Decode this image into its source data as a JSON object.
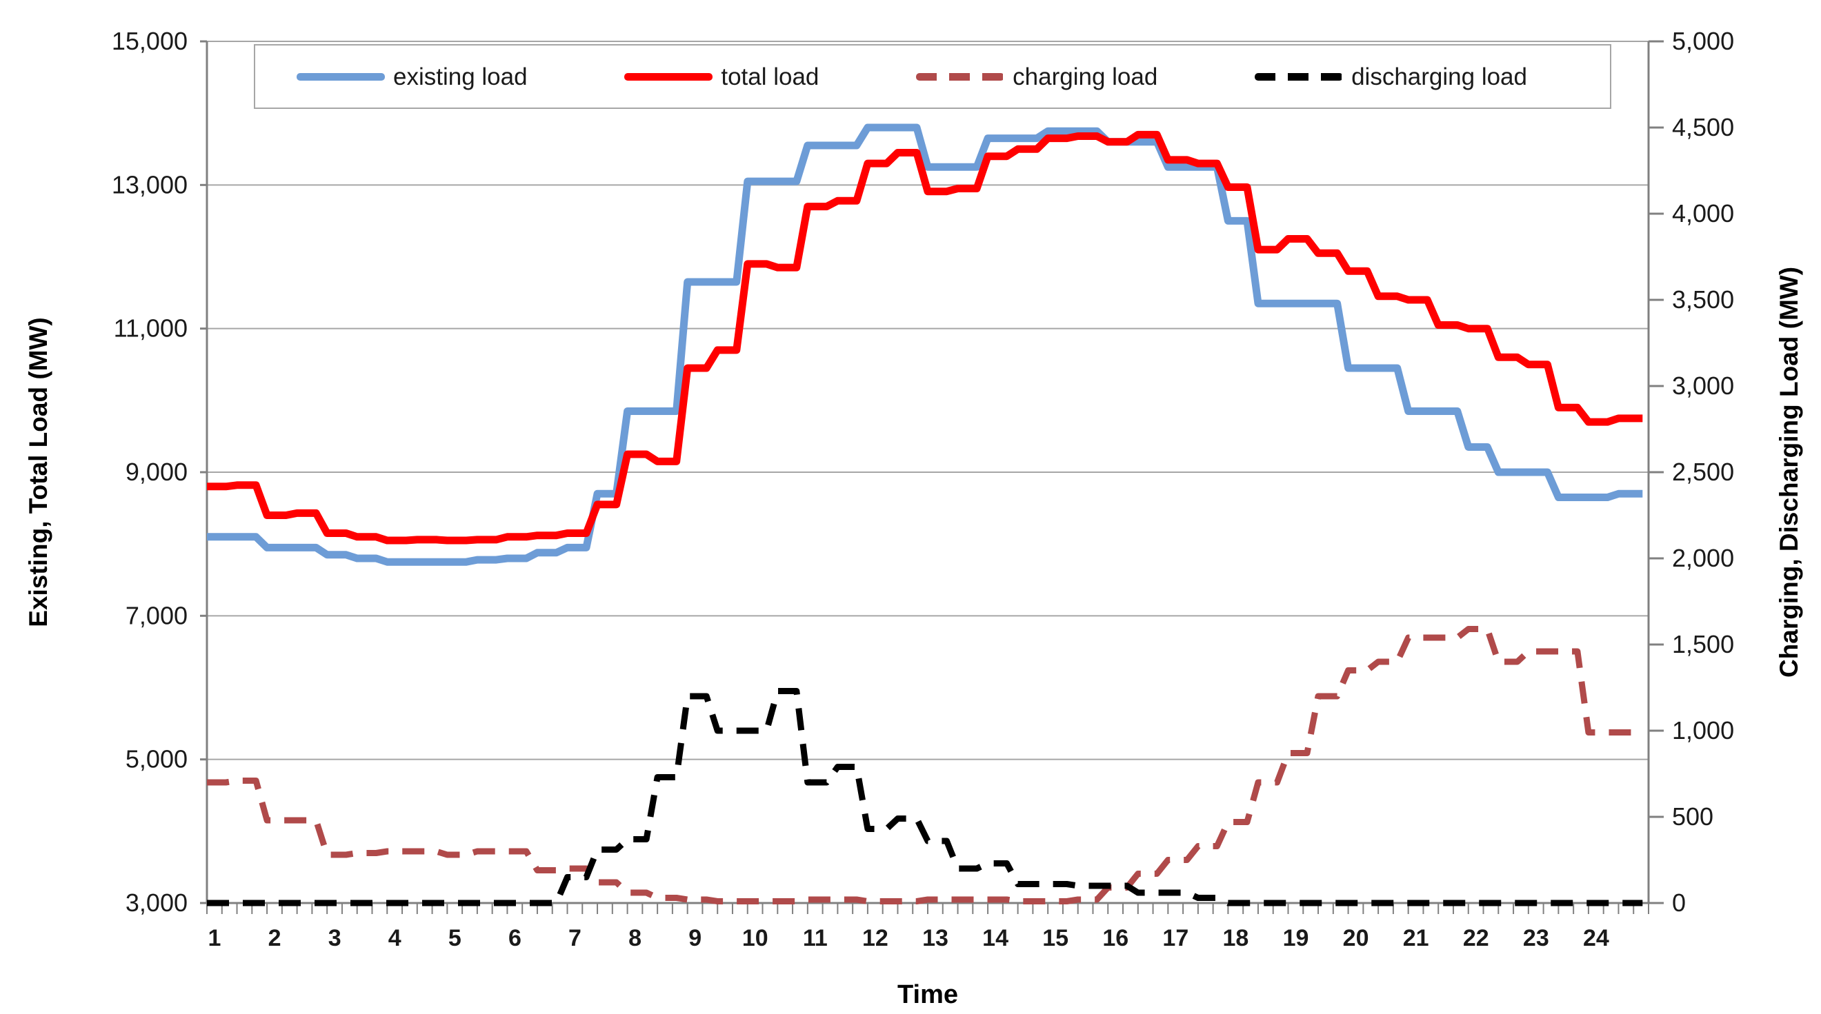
{
  "chart_data": {
    "type": "line",
    "title": "",
    "x_axis": {
      "label": "Time",
      "tick_labels": [
        "1",
        "2",
        "3",
        "4",
        "5",
        "6",
        "7",
        "8",
        "9",
        "10",
        "11",
        "12",
        "13",
        "14",
        "15",
        "16",
        "17",
        "18",
        "19",
        "20",
        "21",
        "22",
        "23",
        "24"
      ],
      "tick_values": [
        1,
        2,
        3,
        4,
        5,
        6,
        7,
        8,
        9,
        10,
        11,
        12,
        13,
        14,
        15,
        16,
        17,
        18,
        19,
        20,
        21,
        22,
        23,
        24
      ],
      "range": [
        1,
        25
      ],
      "minor_tick_step": 0.25
    },
    "y_left": {
      "label": "Existing, Total Load (MW)",
      "tick_labels": [
        "3,000",
        "5,000",
        "7,000",
        "9,000",
        "11,000",
        "13,000",
        "15,000"
      ],
      "tick_values": [
        3000,
        5000,
        7000,
        9000,
        11000,
        13000,
        15000
      ],
      "range": [
        3000,
        15000
      ],
      "gridlines": true
    },
    "y_right": {
      "label": "Charging, Discharging Load (MW)",
      "tick_labels": [
        "0",
        "500",
        "1,000",
        "1,500",
        "2,000",
        "2,500",
        "3,000",
        "3,500",
        "4,000",
        "4,500",
        "5,000"
      ],
      "tick_values": [
        0,
        500,
        1000,
        1500,
        2000,
        2500,
        3000,
        3500,
        4000,
        4500,
        5000
      ],
      "range": [
        0,
        5000
      ],
      "gridlines": false
    },
    "x": [
      1,
      1.5,
      2,
      2.5,
      3,
      3.5,
      4,
      4.5,
      5,
      5.5,
      6,
      6.5,
      7,
      7.5,
      8,
      8.5,
      9,
      9.5,
      10,
      10.5,
      11,
      11.5,
      12,
      12.5,
      13,
      13.5,
      14,
      14.5,
      15,
      15.5,
      16,
      16.5,
      17,
      17.5,
      18,
      18.5,
      19,
      19.5,
      20,
      20.5,
      21,
      21.5,
      22,
      22.5,
      23,
      23.5,
      24,
      24.5
    ],
    "x_end": 24.9,
    "series": [
      {
        "name": "existing load",
        "axis": "left",
        "style": "solid",
        "color": "#6D9CD6",
        "width": 11,
        "values": [
          8100,
          8100,
          7950,
          7950,
          7850,
          7800,
          7750,
          7750,
          7750,
          7780,
          7800,
          7880,
          7950,
          8700,
          9850,
          9850,
          11650,
          11650,
          13050,
          13050,
          13550,
          13550,
          13800,
          13800,
          13250,
          13250,
          13650,
          13650,
          13750,
          13750,
          13600,
          13600,
          13250,
          13250,
          12500,
          11350,
          11350,
          11350,
          10450,
          10450,
          9850,
          9850,
          9350,
          9000,
          9000,
          8650,
          8650,
          8700
        ]
      },
      {
        "name": "total load",
        "axis": "left",
        "style": "solid",
        "color": "#FF0000",
        "width": 11,
        "values": [
          8800,
          8820,
          8400,
          8430,
          8150,
          8100,
          8050,
          8060,
          8050,
          8060,
          8100,
          8120,
          8150,
          8550,
          9250,
          9150,
          10450,
          10700,
          11900,
          11850,
          12700,
          12780,
          13300,
          13450,
          12910,
          12950,
          13400,
          13500,
          13650,
          13680,
          13600,
          13700,
          13350,
          13300,
          12970,
          12100,
          12250,
          12050,
          11800,
          11450,
          11400,
          11050,
          11000,
          10600,
          10500,
          9900,
          9700,
          9750
        ]
      },
      {
        "name": "charging load",
        "axis": "right",
        "style": "dashed",
        "color": "#B04A4A",
        "width": 9,
        "values": [
          700,
          710,
          480,
          480,
          280,
          290,
          300,
          300,
          280,
          300,
          300,
          190,
          200,
          120,
          60,
          30,
          20,
          10,
          10,
          10,
          20,
          20,
          10,
          10,
          20,
          20,
          20,
          10,
          10,
          20,
          90,
          170,
          250,
          330,
          470,
          700,
          870,
          1200,
          1350,
          1400,
          1540,
          1540,
          1590,
          1400,
          1460,
          1460,
          990,
          990
        ]
      },
      {
        "name": "discharging load",
        "axis": "right",
        "style": "dashed",
        "color": "#000000",
        "width": 9,
        "values": [
          0,
          0,
          0,
          0,
          0,
          0,
          0,
          0,
          0,
          0,
          0,
          0,
          150,
          310,
          370,
          730,
          1200,
          1000,
          1000,
          1230,
          700,
          790,
          430,
          490,
          360,
          200,
          230,
          110,
          110,
          100,
          100,
          60,
          60,
          30,
          0,
          0,
          0,
          0,
          0,
          0,
          0,
          0,
          0,
          0,
          0,
          0,
          0,
          0
        ]
      }
    ]
  },
  "legend": {
    "items": [
      {
        "label": "existing load",
        "color": "#6D9CD6",
        "style": "solid"
      },
      {
        "label": "total load",
        "color": "#FF0000",
        "style": "solid"
      },
      {
        "label": "charging load",
        "color": "#B04A4A",
        "style": "dashed"
      },
      {
        "label": "discharging load",
        "color": "#000000",
        "style": "dashed"
      }
    ]
  },
  "colors": {
    "background": "#FFFFFF",
    "gridline": "#A6A6A6",
    "axis_line": "#808080",
    "tick_text": "#1A1A1A"
  }
}
